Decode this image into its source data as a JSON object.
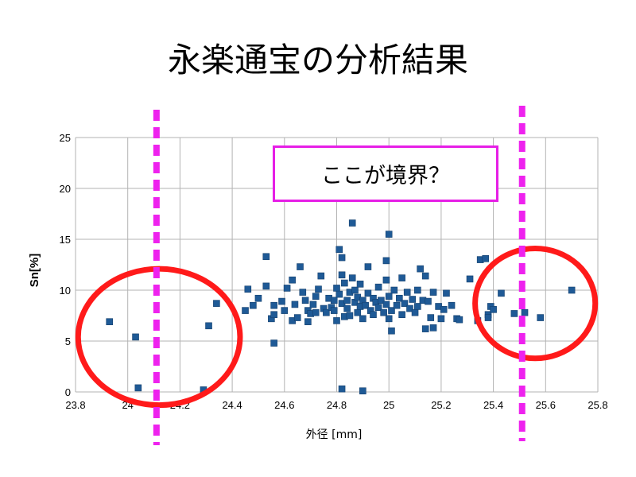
{
  "slide": {
    "title": "永楽通宝の分析結果",
    "callout": "ここが境界？"
  },
  "colors": {
    "marker": "#1f5a96",
    "grid": "#b3b3b3",
    "boundary_line": "#ee22ee",
    "ellipse": "#ff1a1a",
    "callout_border": "#e61ee6"
  },
  "chart_data": {
    "type": "scatter",
    "title": "",
    "xlabel": "外径 [mm]",
    "ylabel": "Sn[%]",
    "xlim": [
      23.8,
      25.8
    ],
    "ylim": [
      0,
      25
    ],
    "x_ticks": [
      "23.8",
      "24",
      "24.2",
      "24.4",
      "24.6",
      "24.8",
      "25",
      "25.2",
      "25.4",
      "25.6",
      "25.8"
    ],
    "y_ticks": [
      "0",
      "5",
      "10",
      "15",
      "20",
      "25"
    ],
    "grid": true,
    "legend": "none",
    "boundaries_x": [
      24.11,
      25.51
    ],
    "highlight_ellipses": [
      {
        "cx": 24.12,
        "cy": 5.4,
        "rx": 0.31,
        "ry": 6.7
      },
      {
        "cx": 25.56,
        "cy": 8.7,
        "rx": 0.23,
        "ry": 5.4
      }
    ],
    "points": [
      [
        23.93,
        6.9
      ],
      [
        24.03,
        5.4
      ],
      [
        24.04,
        0.4
      ],
      [
        24.29,
        0.2
      ],
      [
        24.31,
        6.5
      ],
      [
        24.34,
        8.7
      ],
      [
        24.45,
        8.0
      ],
      [
        24.46,
        10.1
      ],
      [
        24.48,
        8.5
      ],
      [
        24.5,
        9.2
      ],
      [
        24.53,
        10.4
      ],
      [
        24.53,
        13.3
      ],
      [
        24.55,
        7.2
      ],
      [
        24.56,
        7.6
      ],
      [
        24.56,
        8.5
      ],
      [
        24.56,
        4.8
      ],
      [
        24.59,
        8.9
      ],
      [
        24.6,
        8.0
      ],
      [
        24.61,
        10.2
      ],
      [
        24.63,
        7.0
      ],
      [
        24.63,
        11.0
      ],
      [
        24.64,
        8.6
      ],
      [
        24.65,
        7.3
      ],
      [
        24.66,
        12.3
      ],
      [
        24.67,
        9.8
      ],
      [
        24.68,
        9.0
      ],
      [
        24.69,
        8.0
      ],
      [
        24.69,
        6.9
      ],
      [
        24.7,
        7.7
      ],
      [
        24.71,
        8.6
      ],
      [
        24.72,
        9.4
      ],
      [
        24.72,
        7.8
      ],
      [
        24.73,
        10.1
      ],
      [
        24.74,
        11.4
      ],
      [
        24.75,
        8.2
      ],
      [
        24.76,
        7.8
      ],
      [
        24.77,
        9.2
      ],
      [
        24.78,
        8.3
      ],
      [
        24.79,
        9.0
      ],
      [
        24.79,
        8.0
      ],
      [
        24.8,
        10.2
      ],
      [
        24.8,
        7.0
      ],
      [
        24.81,
        14.0
      ],
      [
        24.81,
        9.6
      ],
      [
        24.82,
        13.2
      ],
      [
        24.82,
        8.7
      ],
      [
        24.82,
        11.5
      ],
      [
        24.83,
        7.4
      ],
      [
        24.83,
        10.7
      ],
      [
        24.84,
        9.0
      ],
      [
        24.84,
        8.2
      ],
      [
        24.85,
        9.8
      ],
      [
        24.85,
        7.5
      ],
      [
        24.86,
        16.6
      ],
      [
        24.86,
        11.2
      ],
      [
        24.87,
        8.8
      ],
      [
        24.87,
        10.0
      ],
      [
        24.88,
        9.3
      ],
      [
        24.88,
        7.8
      ],
      [
        24.89,
        8.4
      ],
      [
        24.89,
        10.6
      ],
      [
        24.9,
        9.0
      ],
      [
        24.9,
        7.2
      ],
      [
        24.91,
        8.5
      ],
      [
        24.92,
        9.7
      ],
      [
        24.92,
        12.3
      ],
      [
        24.93,
        8.0
      ],
      [
        24.94,
        9.2
      ],
      [
        24.94,
        7.6
      ],
      [
        24.95,
        8.8
      ],
      [
        24.96,
        10.3
      ],
      [
        24.96,
        8.3
      ],
      [
        24.97,
        9.0
      ],
      [
        24.98,
        7.8
      ],
      [
        24.99,
        12.9
      ],
      [
        24.99,
        11.0
      ],
      [
        24.99,
        8.6
      ],
      [
        25.0,
        15.5
      ],
      [
        25.0,
        9.4
      ],
      [
        25.0,
        7.2
      ],
      [
        25.01,
        8.0
      ],
      [
        25.01,
        6.0
      ],
      [
        25.02,
        10.0
      ],
      [
        25.03,
        8.5
      ],
      [
        25.04,
        9.2
      ],
      [
        25.05,
        7.6
      ],
      [
        25.05,
        11.2
      ],
      [
        25.06,
        8.7
      ],
      [
        25.07,
        9.8
      ],
      [
        25.08,
        8.2
      ],
      [
        25.09,
        9.1
      ],
      [
        25.1,
        7.8
      ],
      [
        25.11,
        10.0
      ],
      [
        25.11,
        8.4
      ],
      [
        25.12,
        12.1
      ],
      [
        25.13,
        9.0
      ],
      [
        25.14,
        6.2
      ],
      [
        25.14,
        11.4
      ],
      [
        25.15,
        8.9
      ],
      [
        25.16,
        7.3
      ],
      [
        25.17,
        9.8
      ],
      [
        25.17,
        6.3
      ],
      [
        25.19,
        8.4
      ],
      [
        25.2,
        7.2
      ],
      [
        25.21,
        8.1
      ],
      [
        25.22,
        9.7
      ],
      [
        25.24,
        8.5
      ],
      [
        25.26,
        7.2
      ],
      [
        25.27,
        7.1
      ],
      [
        25.31,
        11.1
      ],
      [
        25.34,
        7.0
      ],
      [
        25.35,
        13.0
      ],
      [
        25.37,
        13.1
      ],
      [
        25.38,
        7.6
      ],
      [
        25.38,
        7.3
      ],
      [
        25.39,
        8.4
      ],
      [
        25.4,
        8.1
      ],
      [
        25.43,
        9.7
      ],
      [
        25.48,
        7.7
      ],
      [
        25.52,
        7.8
      ],
      [
        25.58,
        7.3
      ],
      [
        25.7,
        10.0
      ],
      [
        24.82,
        0.3
      ],
      [
        24.9,
        0.1
      ]
    ]
  }
}
